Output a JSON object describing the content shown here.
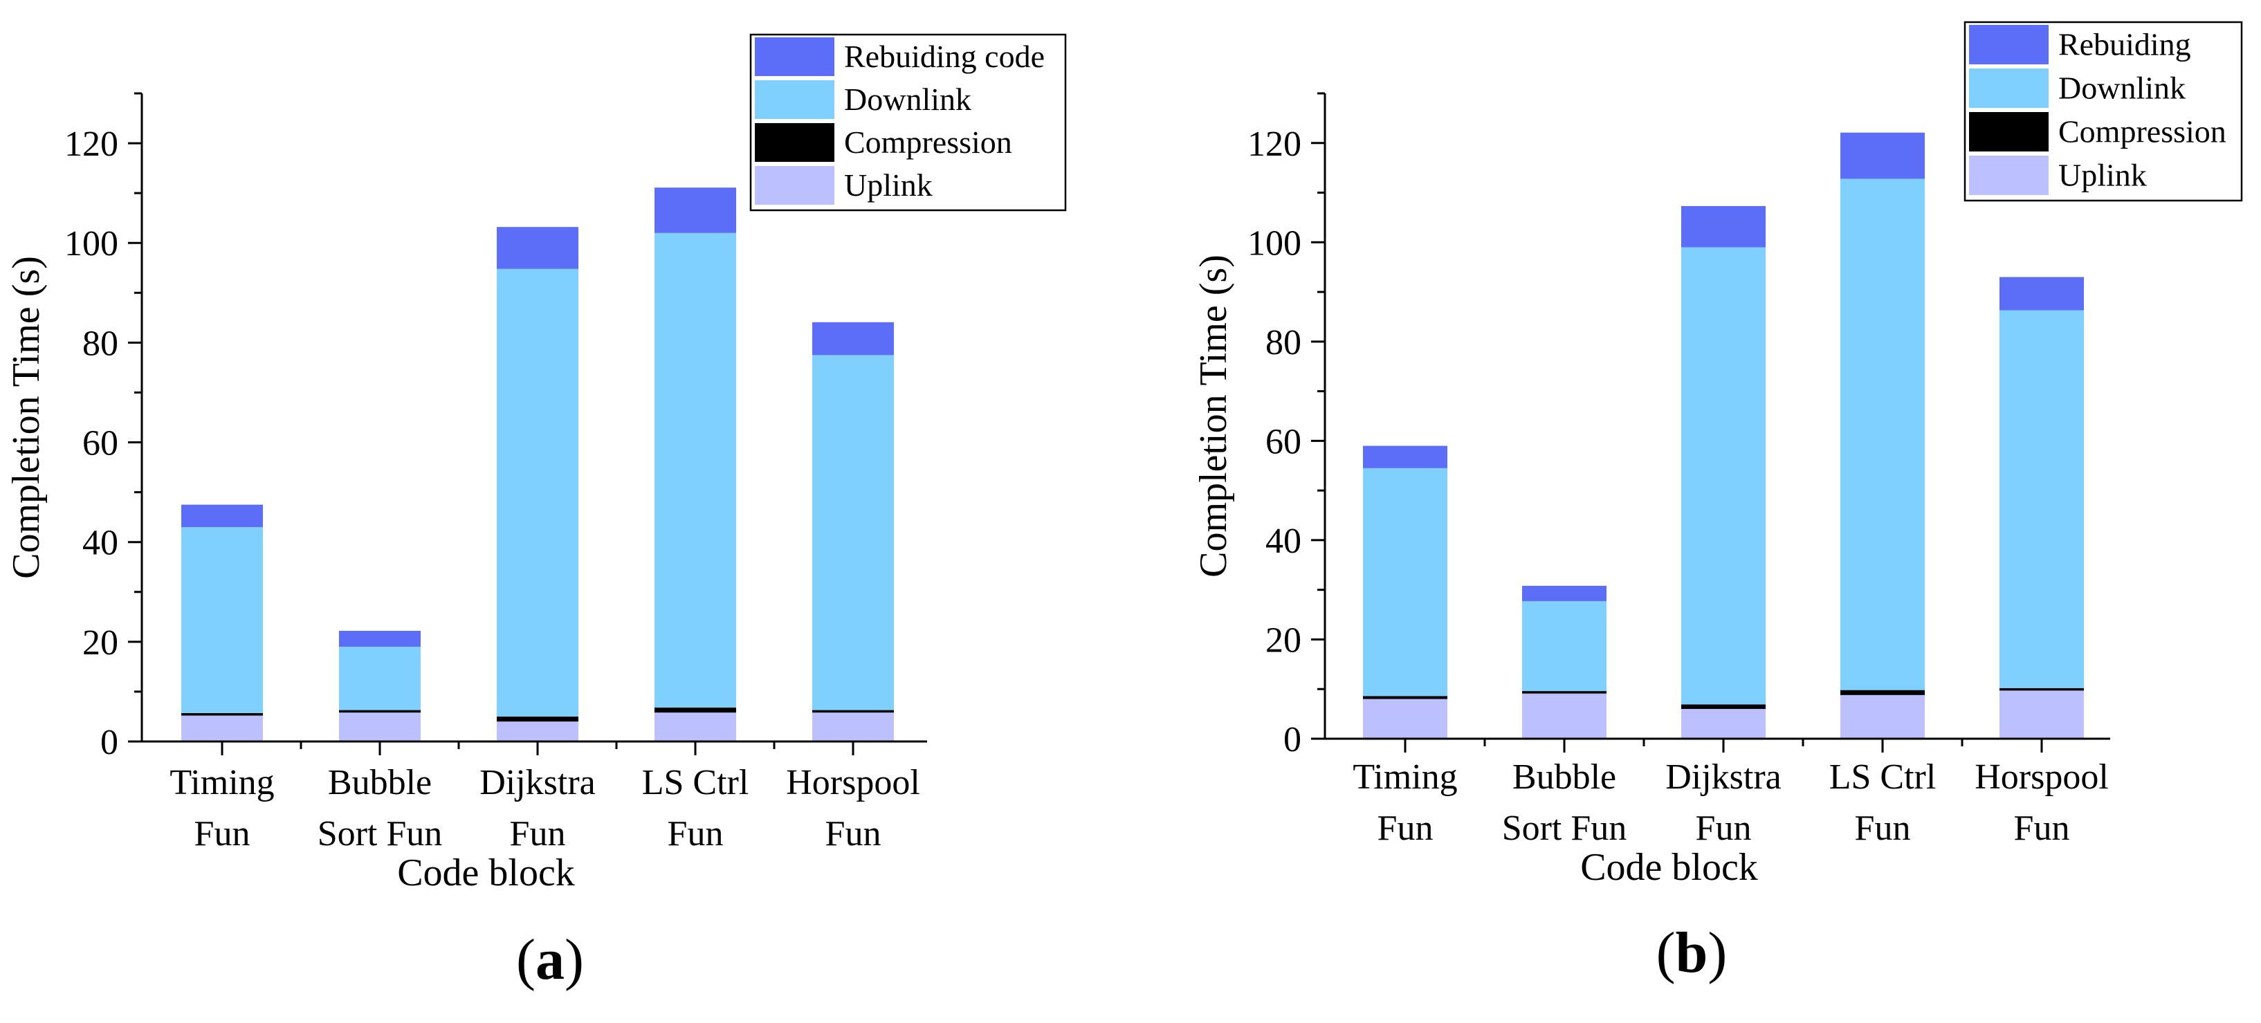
{
  "chart_data": [
    {
      "type": "bar",
      "stacked": true,
      "panel_label": "a",
      "title": "",
      "xlabel": "Code block",
      "ylabel": "Completion Time (s)",
      "ylim": [
        0,
        130
      ],
      "yticks": [
        "0",
        "20",
        "40",
        "60",
        "80",
        "100",
        "120"
      ],
      "categories": [
        [
          "Timing",
          "Fun"
        ],
        [
          "Bubble",
          "Sort Fun"
        ],
        [
          "Dijkstra",
          "Fun"
        ],
        [
          "LS Ctrl",
          "Fun"
        ],
        [
          "Horspool",
          "Fun"
        ]
      ],
      "series": [
        {
          "name": "Uplink",
          "color": "#bcc0ff",
          "values": [
            5.2,
            5.8,
            4.0,
            5.8,
            5.8
          ]
        },
        {
          "name": "Compression",
          "color": "#000000",
          "values": [
            0.5,
            0.5,
            1.0,
            1.0,
            0.5
          ]
        },
        {
          "name": "Downlink",
          "color": "#80d0ff",
          "values": [
            37.3,
            12.7,
            89.8,
            95.2,
            71.2
          ]
        },
        {
          "name": "Rebuiding code",
          "color": "#5c6ef8",
          "values": [
            4.5,
            3.2,
            8.4,
            9.1,
            6.6
          ]
        }
      ],
      "legend_order": [
        "Rebuiding code",
        "Downlink",
        "Compression",
        "Uplink"
      ],
      "legend_position": "top-right"
    },
    {
      "type": "bar",
      "stacked": true,
      "panel_label": "b",
      "title": "",
      "xlabel": "Code block",
      "ylabel": "Completion Time (s)",
      "ylim": [
        0,
        130
      ],
      "yticks": [
        "0",
        "20",
        "40",
        "60",
        "80",
        "100",
        "120"
      ],
      "categories": [
        [
          "Timing",
          "Fun"
        ],
        [
          "Bubble",
          "Sort Fun"
        ],
        [
          "Dijkstra",
          "Fun"
        ],
        [
          "LS Ctrl",
          "Fun"
        ],
        [
          "Horspool",
          "Fun"
        ]
      ],
      "series": [
        {
          "name": "Uplink",
          "color": "#bcc0ff",
          "values": [
            8.0,
            9.1,
            6.0,
            8.8,
            9.7
          ]
        },
        {
          "name": "Compression",
          "color": "#000000",
          "values": [
            0.6,
            0.5,
            0.9,
            1.0,
            0.5
          ]
        },
        {
          "name": "Downlink",
          "color": "#80d0ff",
          "values": [
            45.9,
            18.1,
            92.1,
            103.0,
            76.1
          ]
        },
        {
          "name": "Rebuiding",
          "color": "#5c6ef8",
          "values": [
            4.5,
            3.1,
            8.3,
            9.3,
            6.7
          ]
        }
      ],
      "legend_order": [
        "Rebuiding",
        "Downlink",
        "Compression",
        "Uplink"
      ],
      "legend_position": "top-right"
    }
  ]
}
